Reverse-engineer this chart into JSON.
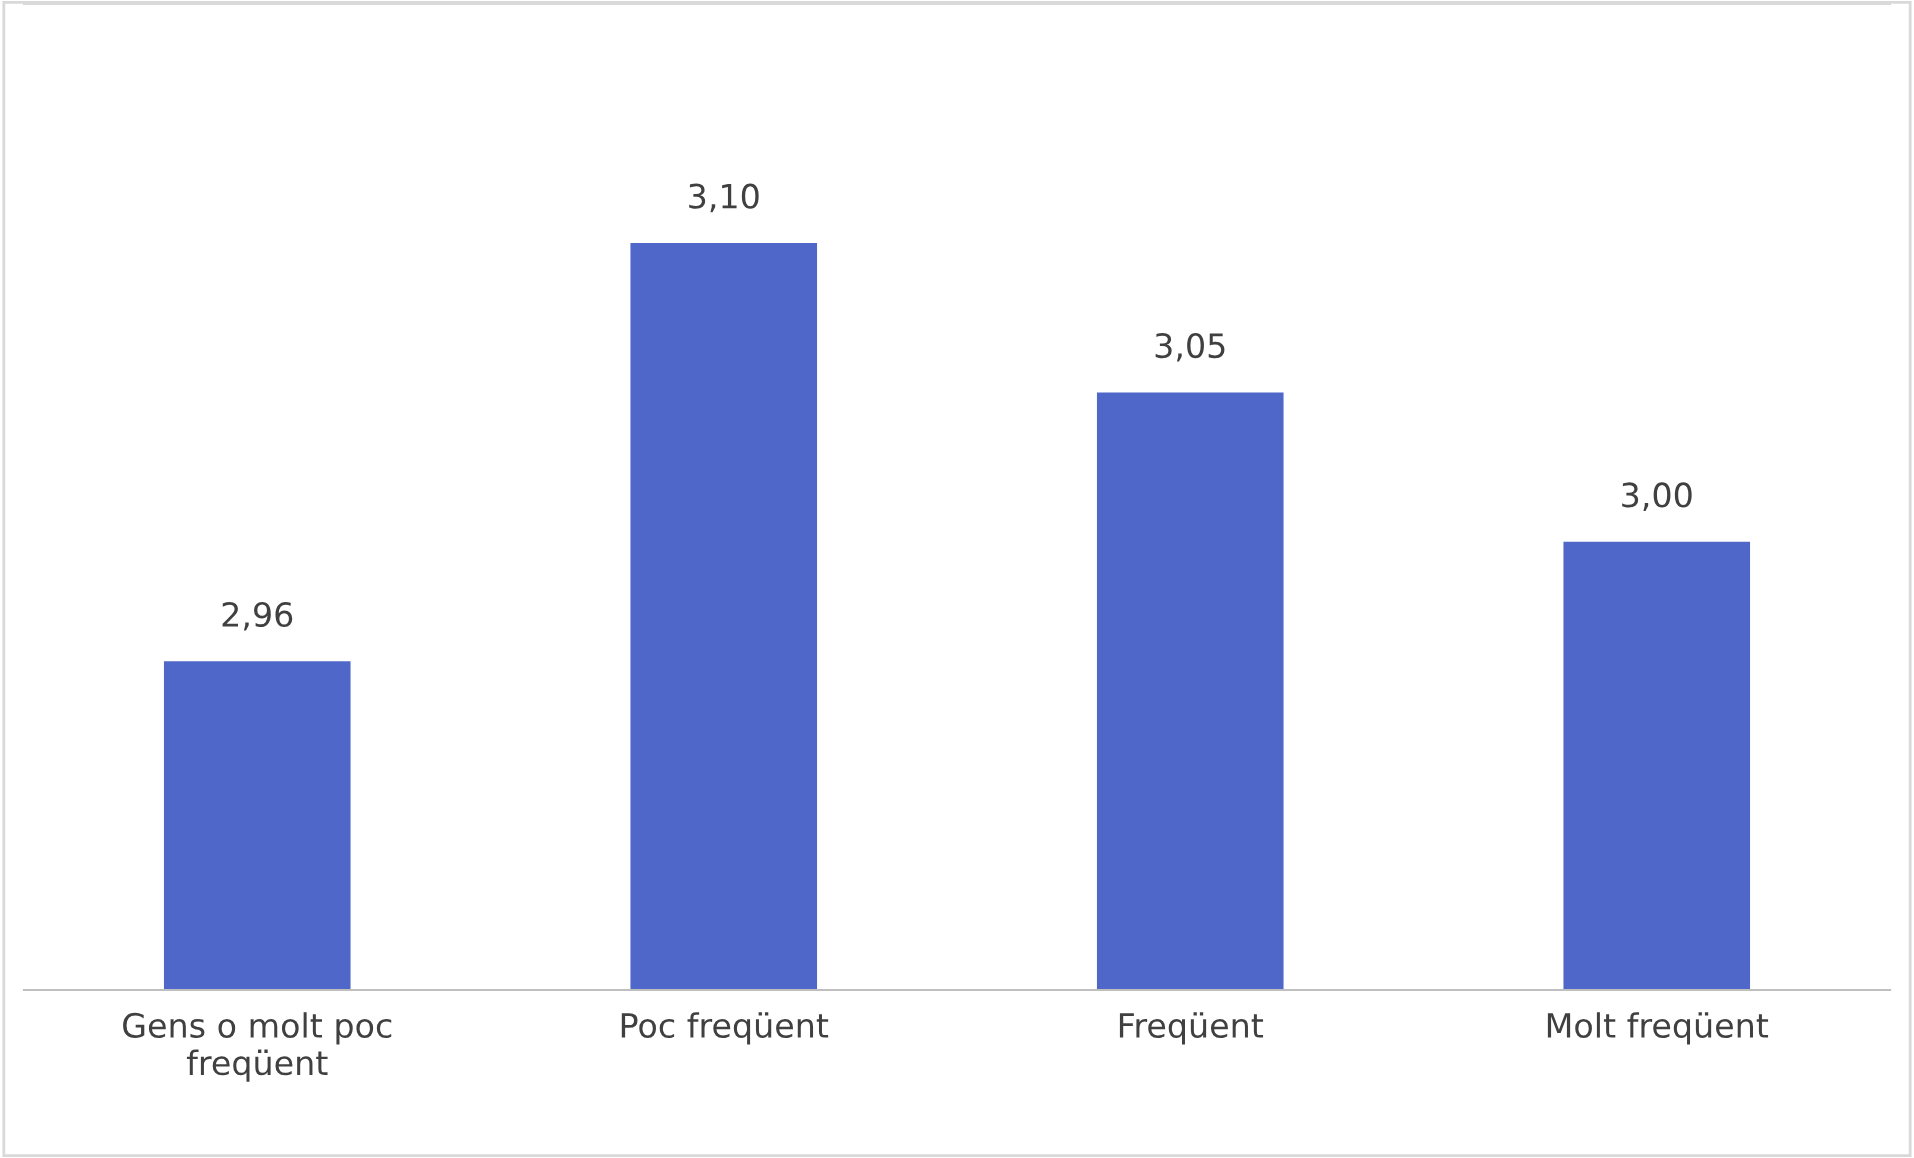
{
  "chart_data": {
    "type": "bar",
    "categories": [
      "Gens o molt poc freqüent",
      "Poc freqüent",
      "Freqüent",
      "Molt freqüent"
    ],
    "values": [
      2.96,
      3.1,
      3.05,
      3.0
    ],
    "value_labels": [
      "2,96",
      "3,10",
      "3,05",
      "3,00"
    ],
    "color": "#4e67c8",
    "ylim": [
      2.85,
      3.18
    ],
    "tick_labels": "x",
    "grid": false,
    "legend": false
  }
}
